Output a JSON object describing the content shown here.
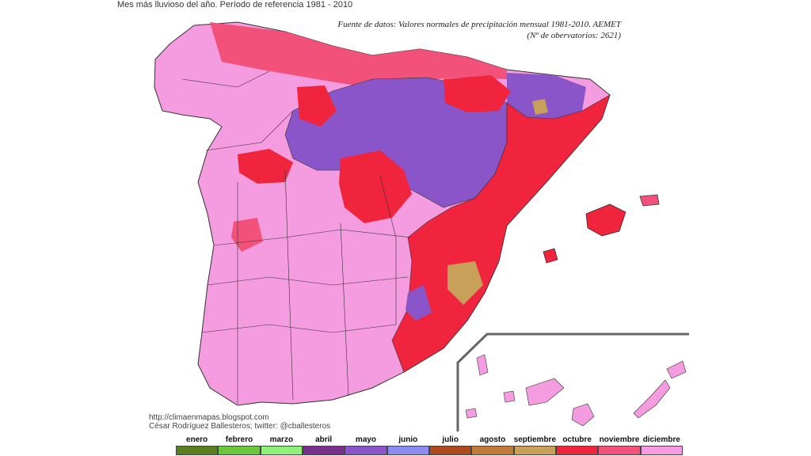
{
  "header": {
    "title": "Mes más lluvioso del año. Período de referencia 1981 - 2010"
  },
  "source": {
    "line1": "Fuente de datos: Valores normales de precipitación mensual 1981-2010. AEMET",
    "line2": "(Nº de obervatorios: 2621)"
  },
  "credits": {
    "line1": "http://climaenmapas.blogspot.com",
    "line2": "César Rodríguez Ballesteros; twitter: @cballesteros"
  },
  "legend": {
    "items": [
      {
        "label": "enero",
        "color": "#5a7f1e"
      },
      {
        "label": "febrero",
        "color": "#6ac73a"
      },
      {
        "label": "marzo",
        "color": "#8ff07a"
      },
      {
        "label": "abril",
        "color": "#7a2f8c"
      },
      {
        "label": "mayo",
        "color": "#8a55c8"
      },
      {
        "label": "junio",
        "color": "#8c8cf0"
      },
      {
        "label": "julio",
        "color": "#b04a1e"
      },
      {
        "label": "agosto",
        "color": "#c07a3a"
      },
      {
        "label": "septiembre",
        "color": "#c9a05a"
      },
      {
        "label": "octubre",
        "color": "#f0243c"
      },
      {
        "label": "noviembre",
        "color": "#f2527a"
      },
      {
        "label": "diciembre",
        "color": "#f59be0"
      }
    ]
  }
}
